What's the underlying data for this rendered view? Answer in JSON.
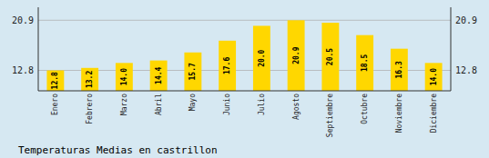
{
  "chart_data": {
    "type": "bar",
    "title": "Temperaturas Medias en castrillon",
    "categories": [
      "Enero",
      "Febrero",
      "Marzo",
      "Abril",
      "Mayo",
      "Junio",
      "Julio",
      "Agosto",
      "Septiembre",
      "Octubre",
      "Noviembre",
      "Diciembre"
    ],
    "values": [
      12.8,
      13.2,
      14.0,
      14.4,
      15.7,
      17.6,
      20.0,
      20.9,
      20.5,
      18.5,
      16.3,
      14.0
    ],
    "value_labels": [
      "12.8",
      "13.2",
      "14.0",
      "14.4",
      "15.7",
      "17.6",
      "20.0",
      "20.9",
      "20.5",
      "18.5",
      "16.3",
      "14.0"
    ],
    "color": "#FFD700",
    "ylim": [
      9.5,
      23.0
    ],
    "yticks": [
      12.8,
      20.9
    ],
    "grid": true,
    "data_labels": true
  }
}
